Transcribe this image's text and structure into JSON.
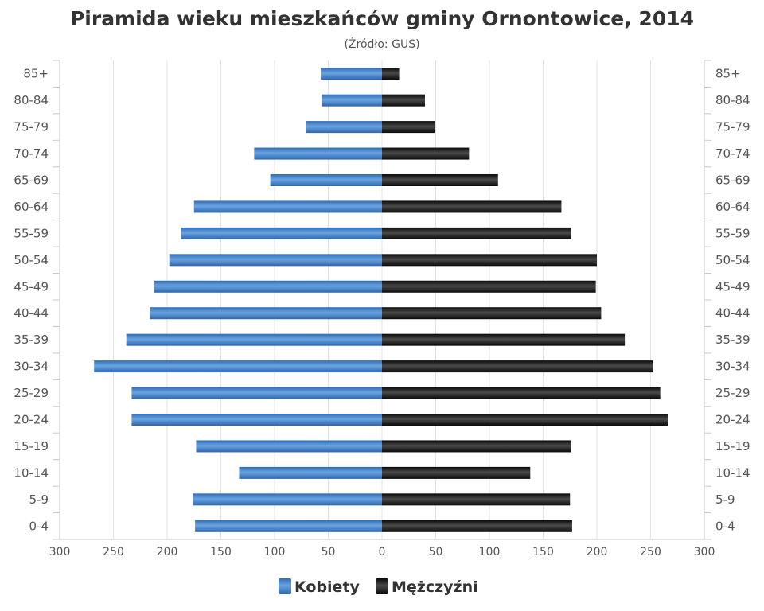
{
  "chart_data": {
    "type": "bar",
    "orientation": "horizontal-pyramid",
    "title": "Piramida wieku mieszkańców gminy Ornontowice, 2014",
    "subtitle": "(Źródło: GUS)",
    "categories": [
      "85+",
      "80-84",
      "75-79",
      "70-74",
      "65-69",
      "60-64",
      "55-59",
      "50-54",
      "45-49",
      "40-44",
      "35-39",
      "30-34",
      "25-29",
      "20-24",
      "15-19",
      "10-14",
      "5-9",
      "0-4"
    ],
    "series": [
      {
        "name": "Kobiety",
        "color": "#3d7cc9",
        "values": [
          57,
          56,
          71,
          119,
          104,
          175,
          187,
          198,
          212,
          216,
          238,
          268,
          233,
          233,
          173,
          133,
          176,
          174
        ]
      },
      {
        "name": "Mężczyźni",
        "color": "#1a1a1a",
        "values": [
          16,
          40,
          49,
          81,
          108,
          167,
          176,
          200,
          199,
          204,
          226,
          252,
          259,
          266,
          176,
          138,
          175,
          177
        ]
      }
    ],
    "xlim": [
      -300,
      300
    ],
    "x_ticks": [
      "300",
      "250",
      "200",
      "150",
      "100",
      "50",
      "0",
      "50",
      "100",
      "150",
      "200",
      "250",
      "300"
    ],
    "grid": true,
    "legend": "bottom-center"
  }
}
